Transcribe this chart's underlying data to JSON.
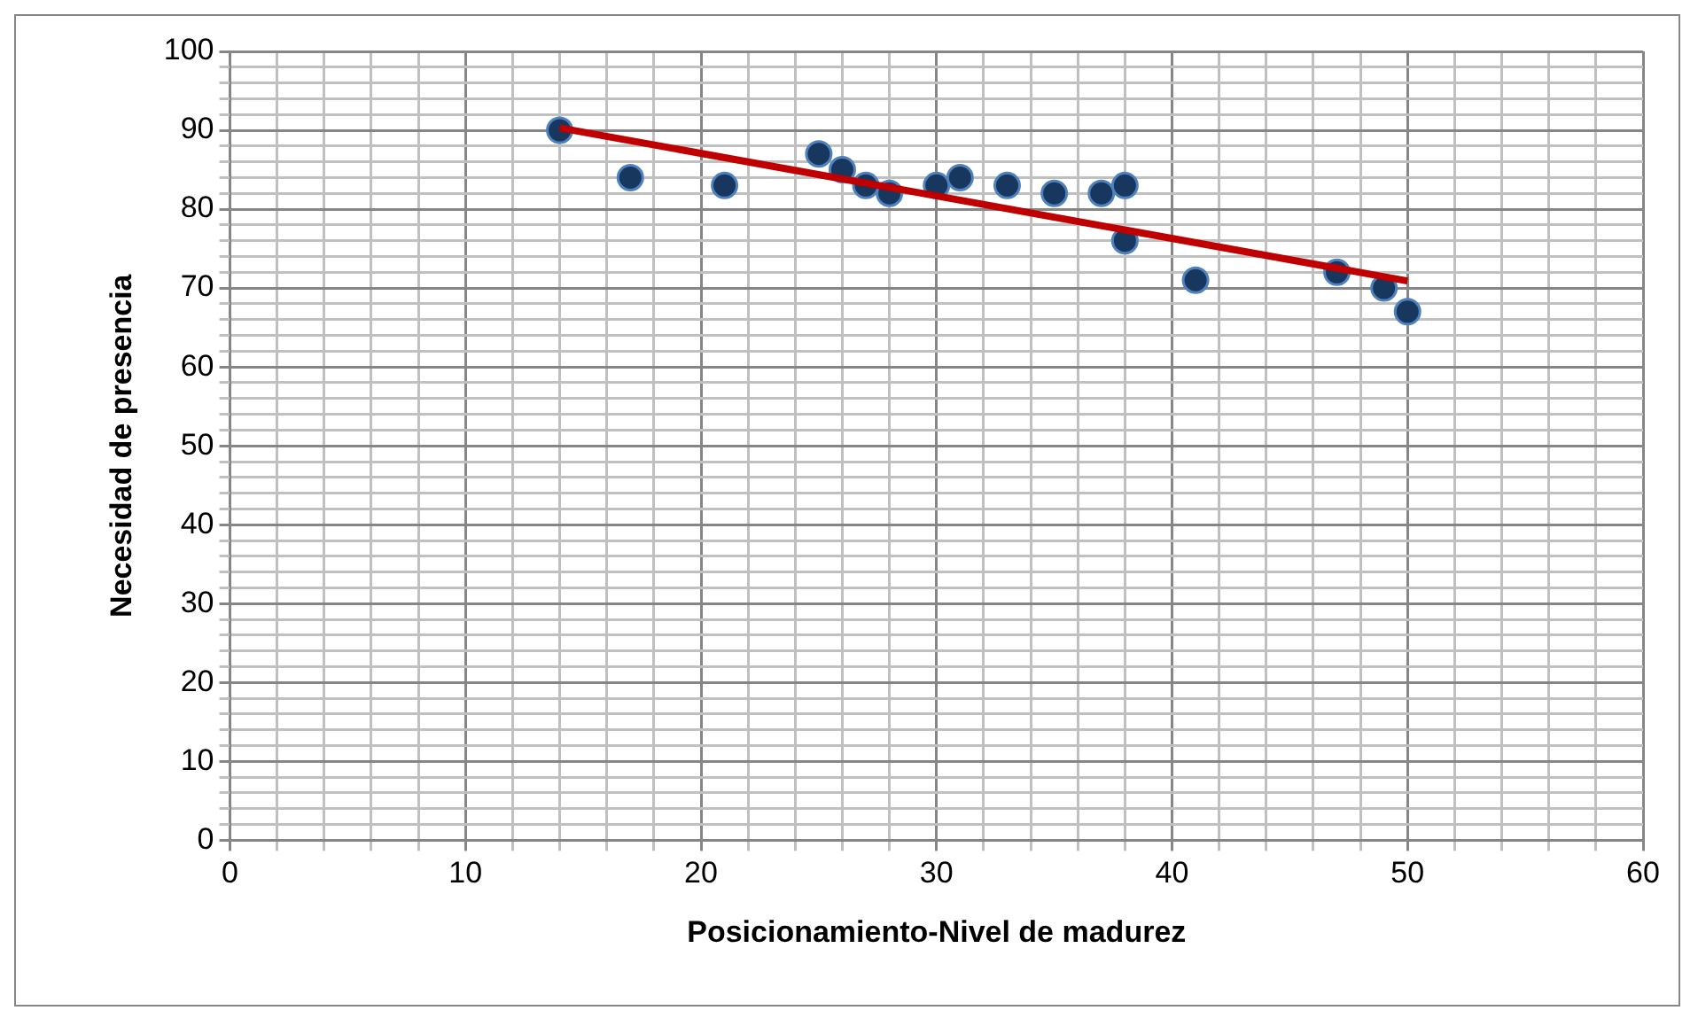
{
  "chart_data": {
    "type": "scatter",
    "xlabel": "Posicionamiento-Nivel de madurez",
    "ylabel": "Necesidad de presencia",
    "xlim": [
      0,
      60
    ],
    "ylim": [
      0,
      100
    ],
    "xticks": [
      0,
      {
        "value": 2,
        "label": null
      },
      {
        "value": 4,
        "label": null
      },
      {
        "value": 6,
        "label": null
      },
      {
        "value": 8,
        "label": null
      },
      10,
      {
        "value": 12,
        "label": null
      },
      {
        "value": 14,
        "label": null
      },
      {
        "value": 16,
        "label": null
      },
      {
        "value": 18,
        "label": null
      },
      20,
      {
        "value": 22,
        "label": null
      },
      {
        "value": 24,
        "label": null
      },
      {
        "value": 26,
        "label": null
      },
      {
        "value": 28,
        "label": null
      },
      30,
      {
        "value": 32,
        "label": null
      },
      {
        "value": 34,
        "label": null
      },
      {
        "value": 36,
        "label": null
      },
      {
        "value": 38,
        "label": null
      },
      40,
      {
        "value": 42,
        "label": null
      },
      {
        "value": 44,
        "label": null
      },
      {
        "value": 46,
        "label": null
      },
      {
        "value": 48,
        "label": null
      },
      50,
      {
        "value": 52,
        "label": null
      },
      {
        "value": 54,
        "label": null
      },
      {
        "value": 56,
        "label": null
      },
      {
        "value": 58,
        "label": null
      },
      60
    ],
    "yticks": [
      0,
      {
        "value": 2,
        "label": null
      },
      {
        "value": 4,
        "label": null
      },
      {
        "value": 6,
        "label": null
      },
      {
        "value": 8,
        "label": null
      },
      10,
      {
        "value": 12,
        "label": null
      },
      {
        "value": 14,
        "label": null
      },
      {
        "value": 16,
        "label": null
      },
      {
        "value": 18,
        "label": null
      },
      20,
      {
        "value": 22,
        "label": null
      },
      {
        "value": 24,
        "label": null
      },
      {
        "value": 26,
        "label": null
      },
      {
        "value": 28,
        "label": null
      },
      30,
      {
        "value": 32,
        "label": null
      },
      {
        "value": 34,
        "label": null
      },
      {
        "value": 36,
        "label": null
      },
      {
        "value": 38,
        "label": null
      },
      40,
      {
        "value": 42,
        "label": null
      },
      {
        "value": 44,
        "label": null
      },
      {
        "value": 46,
        "label": null
      },
      {
        "value": 48,
        "label": null
      },
      50,
      {
        "value": 52,
        "label": null
      },
      {
        "value": 54,
        "label": null
      },
      {
        "value": 56,
        "label": null
      },
      {
        "value": 58,
        "label": null
      },
      60,
      {
        "value": 62,
        "label": null
      },
      {
        "value": 64,
        "label": null
      },
      {
        "value": 66,
        "label": null
      },
      {
        "value": 68,
        "label": null
      },
      70,
      {
        "value": 72,
        "label": null
      },
      {
        "value": 74,
        "label": null
      },
      {
        "value": 76,
        "label": null
      },
      {
        "value": 78,
        "label": null
      },
      80,
      {
        "value": 82,
        "label": null
      },
      {
        "value": 84,
        "label": null
      },
      {
        "value": 86,
        "label": null
      },
      {
        "value": 88,
        "label": null
      },
      90,
      {
        "value": 92,
        "label": null
      },
      {
        "value": 94,
        "label": null
      },
      {
        "value": 96,
        "label": null
      },
      {
        "value": 98,
        "label": null
      },
      100
    ],
    "grid": true,
    "legend": false,
    "marker": "circle",
    "series": [
      {
        "type": "scatter",
        "color": "#17375e",
        "x": [
          14,
          17,
          21,
          25,
          26,
          27,
          28,
          30,
          31,
          33,
          35,
          37,
          38,
          38,
          41,
          47,
          49,
          50
        ],
        "values": [
          90,
          84,
          83,
          87,
          85,
          83,
          82,
          83,
          84,
          83,
          82,
          82,
          83,
          76,
          71,
          72,
          70,
          67
        ]
      },
      {
        "type": "line",
        "color": "#c00000",
        "line_style": "solid",
        "marker": "none",
        "x": [
          14,
          50
        ],
        "values": [
          90.3,
          70.9
        ]
      }
    ]
  }
}
